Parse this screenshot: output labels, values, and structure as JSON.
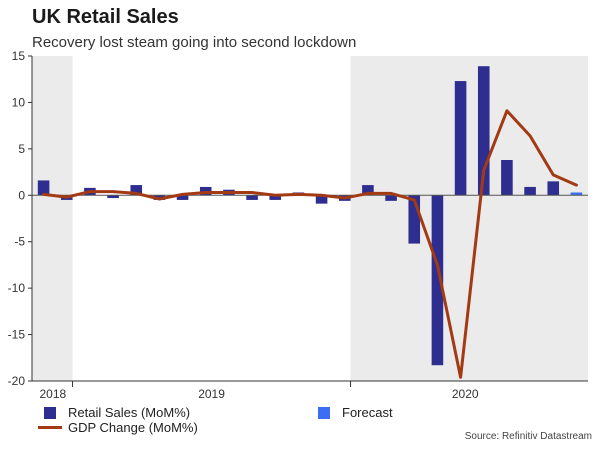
{
  "chart_data": {
    "type": "bar+line",
    "title": "UK Retail Sales",
    "subtitle": "Recovery lost steam going into second lockdown",
    "ylim": [
      -20,
      15
    ],
    "yticks": [
      15,
      10,
      5,
      0,
      -5,
      -10,
      -15,
      -20
    ],
    "year_labels": [
      "2018",
      "2019",
      "2020"
    ],
    "grid": false,
    "legend_position": "bottom",
    "series": [
      {
        "name": "Retail Sales (MoM%)",
        "kind": "bar",
        "color": "#2d2e8f",
        "values": [
          1.6,
          -0.5,
          0.8,
          -0.3,
          1.1,
          -0.5,
          -0.5,
          0.9,
          0.6,
          -0.5,
          -0.5,
          0.3,
          -0.9,
          -0.6,
          1.1,
          -0.6,
          -5.2,
          -18.3,
          12.3,
          13.9,
          3.8,
          0.9,
          1.5
        ]
      },
      {
        "name": "Forecast",
        "kind": "bar",
        "color": "#3b6ef5",
        "values": [
          null,
          null,
          null,
          null,
          null,
          null,
          null,
          null,
          null,
          null,
          null,
          null,
          null,
          null,
          null,
          null,
          null,
          null,
          null,
          null,
          null,
          null,
          null,
          0.3
        ]
      },
      {
        "name": "GDP Change (MoM%)",
        "kind": "line",
        "color": "#a33a14",
        "values": [
          0.1,
          -0.2,
          0.4,
          0.4,
          0.2,
          -0.4,
          0.1,
          0.3,
          0.3,
          0.3,
          0.0,
          0.1,
          0.0,
          -0.3,
          0.2,
          0.2,
          -0.5,
          -7.5,
          -19.6,
          2.7,
          9.1,
          6.4,
          2.2,
          1.1
        ]
      }
    ],
    "shaded_periods": [
      "2018",
      "2020"
    ],
    "colors": {
      "shade": "#ebebeb",
      "axis": "#333333"
    }
  },
  "legend": {
    "retail": "Retail Sales (MoM%)",
    "forecast": "Forecast",
    "gdp": "GDP Change (MoM%)"
  },
  "source": "Source: Refinitiv Datastream"
}
